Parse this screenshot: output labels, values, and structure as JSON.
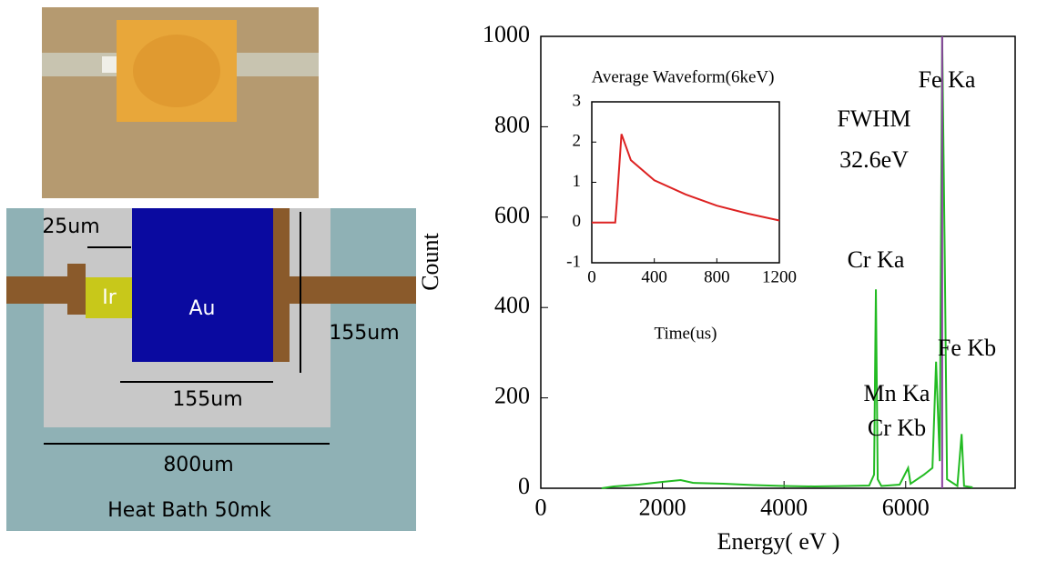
{
  "diagram": {
    "labels": [
      "25um",
      "Ir",
      "Au",
      "155um",
      "155um",
      "800um",
      "Heat Bath 50mk"
    ]
  },
  "chart_data": [
    {
      "type": "line",
      "ylabel": "Count",
      "xlabel": "Energy( eV )",
      "xlim": [
        0,
        7800
      ],
      "ylim": [
        0,
        1000
      ],
      "xticks": [
        0,
        2000,
        4000,
        6000
      ],
      "yticks": [
        0,
        200,
        400,
        600,
        800,
        1000
      ],
      "annotations": [
        "Fe Ka",
        "FWHM",
        "32.6eV",
        "Cr Ka",
        "Fe Kb",
        "Mn Ka",
        "Cr Kb"
      ],
      "series": [
        {
          "color": "#22bb22",
          "x": [
            1000,
            1200,
            1600,
            2000,
            2300,
            2500,
            3000,
            3500,
            4000,
            4500,
            5000,
            5400,
            5480,
            5510,
            5540,
            5600,
            5900,
            6040,
            6080,
            6300,
            6440,
            6500,
            6560,
            6600,
            6640,
            6680,
            6850,
            6920,
            6960,
            7100
          ],
          "values": [
            0,
            4,
            8,
            14,
            18,
            12,
            10,
            7,
            5,
            4,
            5,
            6,
            30,
            440,
            20,
            5,
            8,
            45,
            10,
            30,
            45,
            280,
            60,
            1000,
            540,
            20,
            5,
            120,
            5,
            2
          ]
        },
        {
          "color": "#8a3fa0",
          "x": [
            6600,
            6600
          ],
          "values": [
            0,
            1000
          ]
        }
      ]
    },
    {
      "type": "line",
      "title": "Average Waveform(6keV)",
      "xlabel": "Time(us)",
      "xlim": [
        0,
        1200
      ],
      "ylim": [
        -1,
        3
      ],
      "xticks": [
        0,
        400,
        800,
        1200
      ],
      "yticks": [
        -1,
        0,
        1,
        2,
        3
      ],
      "series": [
        {
          "color": "#dd2222",
          "x": [
            0,
            150,
            160,
            190,
            250,
            400,
            600,
            800,
            1000,
            1200
          ],
          "values": [
            0,
            0,
            0.5,
            2.2,
            1.55,
            1.05,
            0.7,
            0.42,
            0.22,
            0.05
          ]
        }
      ]
    }
  ]
}
